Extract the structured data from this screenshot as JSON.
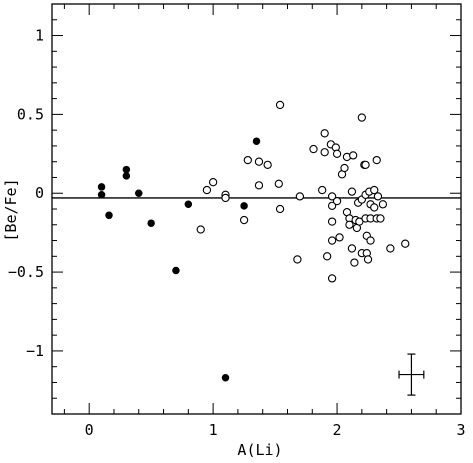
{
  "chart_data": {
    "type": "scatter",
    "title": "",
    "xlabel": "A(Li)",
    "ylabel": "[Be/Fe]",
    "xlim": [
      -0.3,
      3.0
    ],
    "ylim": [
      -1.4,
      1.2
    ],
    "xticks_major": [
      0,
      1,
      2,
      3
    ],
    "xticks_minor_step": 0.2,
    "yticks_major": [
      -1,
      -0.5,
      0,
      0.5,
      1
    ],
    "yticks_minor_step": 0.1,
    "xtick_labels": [
      "0",
      "1",
      "2",
      "3"
    ],
    "ytick_labels": [
      "−1",
      "−0.5",
      "0",
      "0.5",
      "1"
    ],
    "grid": false,
    "reference_line": {
      "y": -0.03,
      "x_from": -0.3,
      "x_to": 3.0
    },
    "error_bar": {
      "x": 2.6,
      "y": -1.15,
      "xerr": 0.1,
      "yerr": 0.13
    },
    "series": [
      {
        "marker": "filled-circle",
        "points": [
          [
            0.1,
            0.04
          ],
          [
            0.1,
            -0.01
          ],
          [
            0.16,
            -0.14
          ],
          [
            0.3,
            0.15
          ],
          [
            0.3,
            0.11
          ],
          [
            0.4,
            0.0
          ],
          [
            0.5,
            -0.19
          ],
          [
            0.7,
            -0.49
          ],
          [
            0.8,
            -0.07
          ],
          [
            1.1,
            -1.17
          ],
          [
            1.25,
            -0.08
          ],
          [
            1.35,
            0.33
          ]
        ]
      },
      {
        "marker": "open-circle",
        "points": [
          [
            0.9,
            -0.23
          ],
          [
            0.95,
            0.02
          ],
          [
            1.0,
            0.07
          ],
          [
            1.1,
            -0.01
          ],
          [
            1.1,
            -0.03
          ],
          [
            1.25,
            -0.17
          ],
          [
            1.28,
            0.21
          ],
          [
            1.37,
            0.2
          ],
          [
            1.37,
            0.05
          ],
          [
            1.44,
            0.18
          ],
          [
            1.53,
            0.06
          ],
          [
            1.54,
            0.56
          ],
          [
            1.54,
            -0.1
          ],
          [
            1.68,
            -0.42
          ],
          [
            1.7,
            -0.02
          ],
          [
            1.81,
            0.28
          ],
          [
            1.88,
            0.02
          ],
          [
            1.9,
            0.38
          ],
          [
            1.9,
            0.26
          ],
          [
            1.92,
            -0.4
          ],
          [
            1.95,
            0.31
          ],
          [
            1.96,
            -0.02
          ],
          [
            1.96,
            -0.08
          ],
          [
            1.96,
            -0.18
          ],
          [
            1.96,
            -0.3
          ],
          [
            1.96,
            -0.54
          ],
          [
            1.99,
            0.29
          ],
          [
            2.0,
            0.25
          ],
          [
            2.0,
            -0.05
          ],
          [
            2.02,
            -0.28
          ],
          [
            2.04,
            0.12
          ],
          [
            2.06,
            0.16
          ],
          [
            2.08,
            0.23
          ],
          [
            2.08,
            -0.12
          ],
          [
            2.1,
            -0.16
          ],
          [
            2.1,
            -0.2
          ],
          [
            2.12,
            0.01
          ],
          [
            2.12,
            -0.35
          ],
          [
            2.13,
            0.24
          ],
          [
            2.14,
            -0.44
          ],
          [
            2.15,
            -0.17
          ],
          [
            2.16,
            -0.22
          ],
          [
            2.17,
            -0.06
          ],
          [
            2.18,
            -0.18
          ],
          [
            2.2,
            0.48
          ],
          [
            2.2,
            -0.04
          ],
          [
            2.2,
            -0.38
          ],
          [
            2.22,
            0.18
          ],
          [
            2.23,
            0.18
          ],
          [
            2.23,
            -0.01
          ],
          [
            2.23,
            -0.16
          ],
          [
            2.24,
            -0.27
          ],
          [
            2.24,
            -0.38
          ],
          [
            2.25,
            -0.42
          ],
          [
            2.26,
            0.01
          ],
          [
            2.27,
            -0.07
          ],
          [
            2.27,
            -0.16
          ],
          [
            2.27,
            -0.3
          ],
          [
            2.3,
            0.02
          ],
          [
            2.3,
            -0.09
          ],
          [
            2.32,
            0.21
          ],
          [
            2.32,
            -0.16
          ],
          [
            2.33,
            -0.02
          ],
          [
            2.35,
            -0.16
          ],
          [
            2.37,
            -0.07
          ],
          [
            2.43,
            -0.35
          ],
          [
            2.55,
            -0.32
          ]
        ]
      }
    ]
  }
}
